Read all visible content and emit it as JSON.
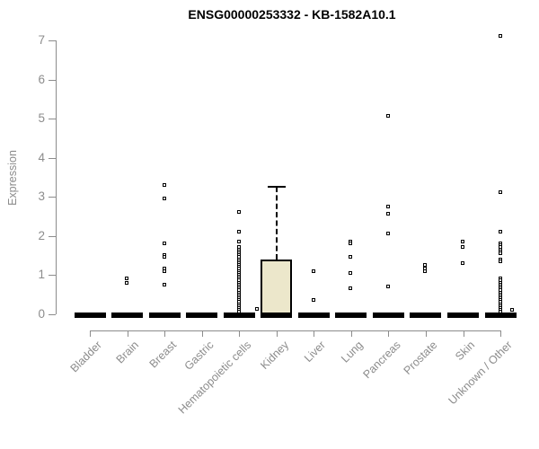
{
  "chart_data": {
    "type": "boxplot",
    "title": "ENSG00000253332 - KB-1582A10.1",
    "xlabel": "",
    "ylabel": "Expression",
    "ylim": [
      0,
      7.2
    ],
    "yticks": [
      0,
      1,
      2,
      3,
      4,
      5,
      6,
      7
    ],
    "grid": false,
    "categories": [
      "Bladder",
      "Brain",
      "Breast",
      "Gastric",
      "Hematopoietic cells",
      "Kidney",
      "Liver",
      "Lung",
      "Pancreas",
      "Prostate",
      "Skin",
      "Unknown / Other"
    ],
    "series": [
      {
        "name": "Bladder",
        "box": {
          "q1": 0,
          "median": 0,
          "q3": 0,
          "whisker_low": 0,
          "whisker_high": 0
        },
        "outliers": [],
        "extra_points": []
      },
      {
        "name": "Brain",
        "box": {
          "q1": 0,
          "median": 0,
          "q3": 0,
          "whisker_low": 0,
          "whisker_high": 0
        },
        "outliers": [
          0.9,
          0.8
        ],
        "extra_points": []
      },
      {
        "name": "Breast",
        "box": {
          "q1": 0,
          "median": 0,
          "q3": 0,
          "whisker_low": 0,
          "whisker_high": 0
        },
        "outliers": [
          3.3,
          2.95,
          1.8,
          1.5,
          1.45,
          1.15,
          1.1,
          0.75
        ],
        "extra_points": []
      },
      {
        "name": "Gastric",
        "box": {
          "q1": 0,
          "median": 0,
          "q3": 0,
          "whisker_low": 0,
          "whisker_high": 0
        },
        "outliers": [],
        "extra_points": []
      },
      {
        "name": "Hematopoietic cells",
        "box": {
          "q1": 0,
          "median": 0,
          "q3": 0,
          "whisker_low": 0,
          "whisker_high": 0
        },
        "outliers": [
          2.6,
          2.1,
          1.85,
          1.7,
          1.65,
          1.6,
          1.55,
          1.5,
          1.45,
          1.4,
          1.35,
          1.3,
          1.25,
          1.2,
          1.15,
          1.1,
          1.05,
          1.0,
          0.95,
          0.9,
          0.85,
          0.8,
          0.75,
          0.7,
          0.65,
          0.6,
          0.55,
          0.5,
          0.45,
          0.4,
          0.35,
          0.3,
          0.25,
          0.2,
          0.15,
          0.1,
          0.05
        ],
        "extra_points": []
      },
      {
        "name": "Kidney",
        "box": {
          "q1": 0,
          "median": 0,
          "q3": 1.4,
          "whisker_low": 0,
          "whisker_high": 3.25
        },
        "outliers": [],
        "extra_points": [
          {
            "value": 0.12,
            "dx": -21
          }
        ]
      },
      {
        "name": "Liver",
        "box": {
          "q1": 0,
          "median": 0,
          "q3": 0,
          "whisker_low": 0,
          "whisker_high": 0
        },
        "outliers": [
          1.1,
          0.35
        ],
        "extra_points": []
      },
      {
        "name": "Lung",
        "box": {
          "q1": 0,
          "median": 0,
          "q3": 0,
          "whisker_low": 0,
          "whisker_high": 0
        },
        "outliers": [
          1.85,
          1.8,
          1.45,
          1.05,
          0.65
        ],
        "extra_points": []
      },
      {
        "name": "Pancreas",
        "box": {
          "q1": 0,
          "median": 0,
          "q3": 0,
          "whisker_low": 0,
          "whisker_high": 0
        },
        "outliers": [
          5.05,
          2.75,
          2.55,
          2.05,
          0.7
        ],
        "extra_points": []
      },
      {
        "name": "Prostate",
        "box": {
          "q1": 0,
          "median": 0,
          "q3": 0,
          "whisker_low": 0,
          "whisker_high": 0
        },
        "outliers": [
          1.25,
          1.15,
          1.1
        ],
        "extra_points": []
      },
      {
        "name": "Skin",
        "box": {
          "q1": 0,
          "median": 0,
          "q3": 0,
          "whisker_low": 0,
          "whisker_high": 0
        },
        "outliers": [
          1.85,
          1.7,
          1.3
        ],
        "extra_points": []
      },
      {
        "name": "Unknown / Other",
        "box": {
          "q1": 0,
          "median": 0,
          "q3": 0,
          "whisker_low": 0,
          "whisker_high": 0
        },
        "outliers": [
          7.1,
          3.1,
          2.1,
          1.8,
          1.75,
          1.7,
          1.65,
          1.6,
          1.55,
          1.4,
          1.35,
          0.9,
          0.85,
          0.8,
          0.75,
          0.7,
          0.65,
          0.6,
          0.55,
          0.5,
          0.45,
          0.4,
          0.35,
          0.3,
          0.25,
          0.2,
          0.15,
          0.1,
          0.05
        ],
        "extra_points": [
          {
            "value": 0.1,
            "dx": 13
          }
        ]
      }
    ],
    "legend": null
  },
  "colors": {
    "box_fill": "#ece7cb",
    "box_border": "#000000",
    "marker": "#000000",
    "axis": "#8c8c8c",
    "tick_label": "#8c8c8c",
    "title": "#000000"
  }
}
